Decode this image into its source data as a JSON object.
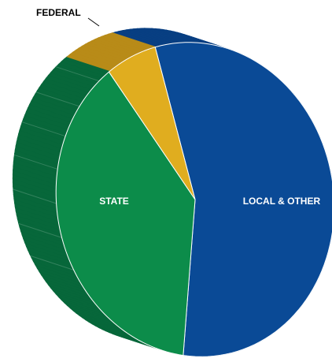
{
  "chart_data": {
    "type": "pie",
    "title": "",
    "slices": [
      {
        "label": "LOCAL & OTHER",
        "value": 56,
        "color": "#0a4a96",
        "side_color": "#083f82"
      },
      {
        "label": "STATE",
        "value": 38,
        "color": "#0c8c4a",
        "side_color": "#07673a"
      },
      {
        "label": "FEDERAL",
        "value": 6,
        "color": "#e0ad1f",
        "side_color": "#b88b18"
      }
    ],
    "label_color_inside": "#ffffff",
    "label_color_outside": "#000000",
    "legend": "none",
    "style": "3d-tilted"
  }
}
